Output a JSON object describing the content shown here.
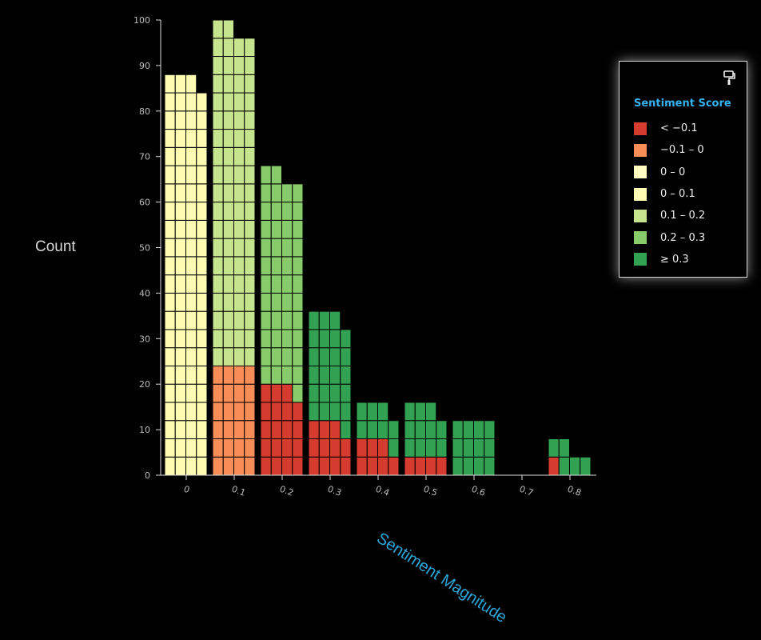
{
  "chart_data": {
    "type": "bar",
    "subtype": "stacked-waffle",
    "xlabel": "Sentiment Magnitude",
    "ylabel": "Count",
    "ylim": [
      0,
      100
    ],
    "yticks": [
      0,
      10,
      20,
      30,
      40,
      50,
      60,
      70,
      80,
      90,
      100
    ],
    "x_ticks": [
      "0",
      "0.1",
      "0.2",
      "0.3",
      "0.4",
      "0.5",
      "0.6",
      "0.7",
      "0.8"
    ],
    "unit_value": 4,
    "cells_per_row": 4,
    "legend": {
      "title": "Sentiment Score",
      "placement": "right",
      "entries": [
        {
          "label": "< −0.1",
          "color": "#d63b2f"
        },
        {
          "label": "−0.1 – 0",
          "color": "#f88d57"
        },
        {
          "label": "0 – 0",
          "color": "#fefcc0"
        },
        {
          "label": "0 – 0.1",
          "color": "#fefcb2"
        },
        {
          "label": "0.1 – 0.2",
          "color": "#c6e38d"
        },
        {
          "label": "0.2 – 0.3",
          "color": "#88cb6a"
        },
        {
          "label": "≥ 0.3",
          "color": "#33a152"
        }
      ]
    },
    "bins": [
      {
        "x": "0",
        "segments": [
          {
            "category": "0 – 0.1",
            "count": 346
          }
        ]
      },
      {
        "x": "0.1",
        "segments": [
          {
            "category": "−0.1 – 0",
            "count": 96
          },
          {
            "category": "0.1 – 0.2",
            "count": 297
          }
        ]
      },
      {
        "x": "0.2",
        "segments": [
          {
            "category": "< −0.1",
            "count": 74
          },
          {
            "category": "0.2 – 0.3",
            "count": 187
          }
        ]
      },
      {
        "x": "0.3",
        "segments": [
          {
            "category": "< −0.1",
            "count": 43
          },
          {
            "category": "≥ 0.3",
            "count": 97
          }
        ]
      },
      {
        "x": "0.4",
        "segments": [
          {
            "category": "< −0.1",
            "count": 28
          },
          {
            "category": "≥ 0.3",
            "count": 32
          }
        ]
      },
      {
        "x": "0.5",
        "segments": [
          {
            "category": "< −0.1",
            "count": 14
          },
          {
            "category": "≥ 0.3",
            "count": 45
          }
        ]
      },
      {
        "x": "0.6",
        "segments": [
          {
            "category": "≥ 0.3",
            "count": 48
          }
        ]
      },
      {
        "x": "0.7",
        "segments": []
      },
      {
        "x": "0.8",
        "segments": [
          {
            "category": "< −0.1",
            "count": 4
          },
          {
            "category": "≥ 0.3",
            "count": 21
          }
        ]
      }
    ]
  },
  "toolbar": {
    "format_icon": "paint-roller-icon"
  }
}
